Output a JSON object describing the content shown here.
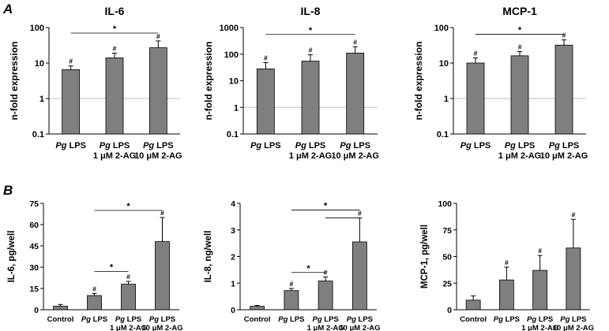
{
  "panels": [
    {
      "id": "A",
      "label": "A"
    },
    {
      "id": "B",
      "label": "B"
    }
  ],
  "colors": {
    "bar_fill": "#7f7f7f",
    "bar_stroke": "#000000",
    "reference_line": "#bfbfbf",
    "axis": "#000000",
    "bracket": "#000000"
  },
  "chart_data": [
    {
      "type": "bar",
      "panel": "A",
      "title": "IL-6",
      "ylabel": "n-fold expression",
      "scale": "log",
      "ylim": [
        0.1,
        100
      ],
      "yticks": [
        "0.1",
        "1",
        "10",
        "100"
      ],
      "reference_line": 1,
      "categories": [
        {
          "prefix": "Pg",
          "rest": " LPS",
          "line2": ""
        },
        {
          "prefix": "Pg",
          "rest": " LPS",
          "line2": "1 μM 2-AG"
        },
        {
          "prefix": "Pg",
          "rest": " LPS",
          "line2": "10 μM 2-AG"
        }
      ],
      "values": [
        6.5,
        14,
        27
      ],
      "errors": [
        1.8,
        5,
        15
      ],
      "marks": [
        "#",
        "#",
        "#"
      ],
      "significance": [
        {
          "from": 0,
          "to": 2,
          "label": "*",
          "at": 70
        }
      ]
    },
    {
      "type": "bar",
      "panel": "A",
      "title": "IL-8",
      "ylabel": "n-fold expression",
      "scale": "log",
      "ylim": [
        0.1,
        1000
      ],
      "yticks": [
        "0.1",
        "1",
        "10",
        "100",
        "1000"
      ],
      "reference_line": 1,
      "categories": [
        {
          "prefix": "Pg",
          "rest": " LPS",
          "line2": ""
        },
        {
          "prefix": "Pg",
          "rest": " LPS",
          "line2": "1 μM 2-AG"
        },
        {
          "prefix": "Pg",
          "rest": " LPS",
          "line2": "10 μM 2-AG"
        }
      ],
      "values": [
        28,
        55,
        110
      ],
      "errors": [
        20,
        40,
        80
      ],
      "marks": [
        "#",
        "#",
        "#"
      ],
      "significance": [
        {
          "from": 0,
          "to": 2,
          "label": "*",
          "at": 550
        }
      ]
    },
    {
      "type": "bar",
      "panel": "A",
      "title": "MCP-1",
      "ylabel": "n-fold expression",
      "scale": "log",
      "ylim": [
        0.1,
        100
      ],
      "yticks": [
        "0.1",
        "1",
        "10",
        "100"
      ],
      "reference_line": 1,
      "categories": [
        {
          "prefix": "Pg",
          "rest": " LPS",
          "line2": ""
        },
        {
          "prefix": "Pg",
          "rest": " LPS",
          "line2": "1 μM 2-AG"
        },
        {
          "prefix": "Pg",
          "rest": " LPS",
          "line2": "10 μM 2-AG"
        }
      ],
      "values": [
        10,
        16,
        32
      ],
      "errors": [
        4,
        5,
        13
      ],
      "marks": [
        "#",
        "#",
        "#"
      ],
      "significance": [
        {
          "from": 0,
          "to": 2,
          "label": "*",
          "at": 65
        }
      ]
    },
    {
      "type": "bar",
      "panel": "B",
      "title": "",
      "ylabel": "IL-6, pg/well",
      "scale": "linear",
      "ylim": [
        0,
        75
      ],
      "yticks": [
        "0",
        "15",
        "30",
        "45",
        "60",
        "75"
      ],
      "categories": [
        {
          "prefix": "",
          "rest": "Control",
          "line2": ""
        },
        {
          "prefix": "Pg",
          "rest": " LPS",
          "line2": ""
        },
        {
          "prefix": "Pg",
          "rest": " LPS",
          "line2": "1 μM 2-AG"
        },
        {
          "prefix": "Pg",
          "rest": " LPS",
          "line2": "10 μM 2-AG"
        }
      ],
      "values": [
        2.5,
        10,
        18,
        48
      ],
      "errors": [
        1.2,
        1.5,
        2,
        17
      ],
      "marks": [
        "",
        "#",
        "#",
        "#"
      ],
      "significance": [
        {
          "from": 1,
          "to": 3,
          "label": "*",
          "at": 70
        },
        {
          "from": 1,
          "to": 2,
          "label": "*",
          "at": 27
        }
      ]
    },
    {
      "type": "bar",
      "panel": "B",
      "title": "",
      "ylabel": "IL-8, ng/well",
      "scale": "linear",
      "ylim": [
        0,
        4
      ],
      "yticks": [
        "0",
        "1",
        "2",
        "3",
        "4"
      ],
      "categories": [
        {
          "prefix": "",
          "rest": "Control",
          "line2": ""
        },
        {
          "prefix": "Pg",
          "rest": " LPS",
          "line2": ""
        },
        {
          "prefix": "Pg",
          "rest": " LPS",
          "line2": "1 μM 2-AG"
        },
        {
          "prefix": "Pg",
          "rest": " LPS",
          "line2": "10 μM 2-AG"
        }
      ],
      "values": [
        0.13,
        0.72,
        1.08,
        2.55
      ],
      "errors": [
        0.03,
        0.08,
        0.15,
        0.9
      ],
      "marks": [
        "",
        "#",
        "#",
        "#"
      ],
      "significance": [
        {
          "from": 1,
          "to": 3,
          "label": "*",
          "at": 3.75
        },
        {
          "from": 2,
          "to": 3,
          "label": "",
          "at": 3.45
        },
        {
          "from": 1,
          "to": 2,
          "label": "*",
          "at": 1.4
        }
      ]
    },
    {
      "type": "bar",
      "panel": "B",
      "title": "",
      "ylabel": "MCP-1, pg/well",
      "scale": "linear",
      "ylim": [
        0,
        100
      ],
      "yticks": [
        "0",
        "25",
        "50",
        "75",
        "100"
      ],
      "categories": [
        {
          "prefix": "",
          "rest": "Control",
          "line2": ""
        },
        {
          "prefix": "Pg",
          "rest": " LPS",
          "line2": ""
        },
        {
          "prefix": "Pg",
          "rest": " LPS",
          "line2": "1 μM 2-AG"
        },
        {
          "prefix": "Pg",
          "rest": " LPS",
          "line2": "10 μM 2-AG"
        }
      ],
      "values": [
        9,
        28,
        37,
        58
      ],
      "errors": [
        4,
        12,
        14,
        27
      ],
      "marks": [
        "",
        "#",
        "#",
        "#"
      ],
      "significance": []
    }
  ]
}
